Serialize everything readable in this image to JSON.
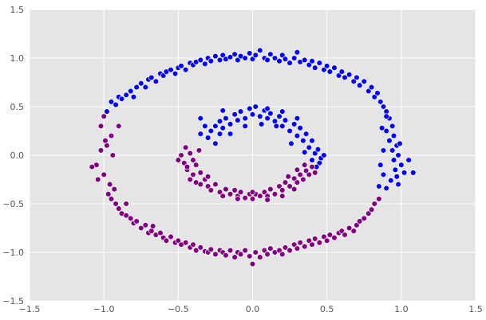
{
  "chart_data": {
    "type": "scatter",
    "title": "",
    "xlabel": "",
    "ylabel": "",
    "xlim": [
      -1.5,
      1.5
    ],
    "ylim": [
      -1.5,
      1.5
    ],
    "grid": true,
    "legend": "none",
    "x_ticks": [
      "−1.5",
      "−1.0",
      "−0.5",
      "0.0",
      "0.5",
      "1.0",
      "1.5"
    ],
    "y_ticks": [
      "1.5",
      "1.0",
      "0.5",
      "0.0",
      "−0.5",
      "−1.0",
      "−1.5"
    ],
    "x_tick_values": [
      -1.5,
      -1.0,
      -0.5,
      0.0,
      0.5,
      1.0,
      1.5
    ],
    "y_tick_values": [
      1.5,
      1.0,
      0.5,
      0.0,
      -0.5,
      -1.0,
      -1.5
    ],
    "colors": {
      "background": "#e5e5e5",
      "grid": "#ffffff",
      "blue": "#0000ff",
      "purple": "#800080"
    },
    "series": [
      {
        "color": "#0000ff",
        "points": [
          [
            -0.98,
            0.45
          ],
          [
            -0.95,
            0.55
          ],
          [
            -0.92,
            0.52
          ],
          [
            -0.9,
            0.6
          ],
          [
            -0.88,
            0.58
          ],
          [
            -0.85,
            0.62
          ],
          [
            -0.82,
            0.66
          ],
          [
            -0.8,
            0.6
          ],
          [
            -0.78,
            0.7
          ],
          [
            -0.75,
            0.74
          ],
          [
            -0.72,
            0.7
          ],
          [
            -0.7,
            0.78
          ],
          [
            -0.68,
            0.8
          ],
          [
            -0.65,
            0.76
          ],
          [
            -0.62,
            0.84
          ],
          [
            -0.6,
            0.82
          ],
          [
            -0.58,
            0.86
          ],
          [
            -0.55,
            0.88
          ],
          [
            -0.52,
            0.84
          ],
          [
            -0.5,
            0.9
          ],
          [
            -0.48,
            0.92
          ],
          [
            -0.45,
            0.88
          ],
          [
            -0.42,
            0.95
          ],
          [
            -0.4,
            0.93
          ],
          [
            -0.38,
            0.96
          ],
          [
            -0.35,
            0.98
          ],
          [
            -0.32,
            0.94
          ],
          [
            -0.3,
            1.0
          ],
          [
            -0.28,
            0.97
          ],
          [
            -0.25,
            1.02
          ],
          [
            -0.22,
            0.98
          ],
          [
            -0.2,
            1.03
          ],
          [
            -0.18,
            0.99
          ],
          [
            -0.15,
            1.01
          ],
          [
            -0.12,
            1.04
          ],
          [
            -0.1,
            0.98
          ],
          [
            -0.08,
            1.02
          ],
          [
            -0.05,
            1.0
          ],
          [
            -0.02,
            1.05
          ],
          [
            0.0,
            0.99
          ],
          [
            0.02,
            1.03
          ],
          [
            0.05,
            1.08
          ],
          [
            0.08,
            1.0
          ],
          [
            0.1,
            0.98
          ],
          [
            0.12,
            1.04
          ],
          [
            0.15,
            1.0
          ],
          [
            0.18,
            0.97
          ],
          [
            0.2,
            1.03
          ],
          [
            0.22,
            0.99
          ],
          [
            0.25,
            0.95
          ],
          [
            0.28,
            1.0
          ],
          [
            0.3,
            1.06
          ],
          [
            0.32,
            0.96
          ],
          [
            0.35,
            0.98
          ],
          [
            0.38,
            0.93
          ],
          [
            0.4,
            0.97
          ],
          [
            0.42,
            0.9
          ],
          [
            0.45,
            0.95
          ],
          [
            0.48,
            0.88
          ],
          [
            0.5,
            0.92
          ],
          [
            0.52,
            0.86
          ],
          [
            0.55,
            0.9
          ],
          [
            0.58,
            0.82
          ],
          [
            0.6,
            0.86
          ],
          [
            0.62,
            0.8
          ],
          [
            0.65,
            0.83
          ],
          [
            0.68,
            0.76
          ],
          [
            0.7,
            0.8
          ],
          [
            0.72,
            0.72
          ],
          [
            0.75,
            0.76
          ],
          [
            0.78,
            0.66
          ],
          [
            0.8,
            0.7
          ],
          [
            0.82,
            0.6
          ],
          [
            0.84,
            0.64
          ],
          [
            0.86,
            0.55
          ],
          [
            0.88,
            0.5
          ],
          [
            0.9,
            0.45
          ],
          [
            0.92,
            0.38
          ],
          [
            0.94,
            0.3
          ],
          [
            0.9,
            0.25
          ],
          [
            0.95,
            0.2
          ],
          [
            0.92,
            0.15
          ],
          [
            0.97,
            0.1
          ],
          [
            0.94,
            0.05
          ],
          [
            0.98,
            0.0
          ],
          [
            0.95,
            -0.05
          ],
          [
            1.0,
            -0.1
          ],
          [
            0.96,
            -0.15
          ],
          [
            1.02,
            -0.18
          ],
          [
            0.97,
            -0.22
          ],
          [
            0.93,
            -0.26
          ],
          [
            0.98,
            -0.3
          ],
          [
            0.9,
            -0.34
          ],
          [
            0.85,
            -0.32
          ],
          [
            0.88,
            -0.2
          ],
          [
            0.86,
            -0.1
          ],
          [
            0.88,
            0.05
          ],
          [
            0.87,
            0.28
          ],
          [
            1.05,
            -0.05
          ],
          [
            1.08,
            -0.18
          ],
          [
            0.99,
            0.12
          ],
          [
            0.9,
            0.4
          ],
          [
            -0.28,
            0.25
          ],
          [
            -0.25,
            0.3
          ],
          [
            -0.22,
            0.35
          ],
          [
            -0.2,
            0.28
          ],
          [
            -0.18,
            0.38
          ],
          [
            -0.15,
            0.32
          ],
          [
            -0.12,
            0.42
          ],
          [
            -0.1,
            0.36
          ],
          [
            -0.08,
            0.45
          ],
          [
            -0.05,
            0.38
          ],
          [
            -0.02,
            0.48
          ],
          [
            0.0,
            0.42
          ],
          [
            0.02,
            0.5
          ],
          [
            0.05,
            0.4
          ],
          [
            0.08,
            0.46
          ],
          [
            0.1,
            0.38
          ],
          [
            0.12,
            0.43
          ],
          [
            0.15,
            0.35
          ],
          [
            0.18,
            0.4
          ],
          [
            0.2,
            0.3
          ],
          [
            0.22,
            0.36
          ],
          [
            0.25,
            0.25
          ],
          [
            0.28,
            0.32
          ],
          [
            0.3,
            0.2
          ],
          [
            0.32,
            0.28
          ],
          [
            0.34,
            0.15
          ],
          [
            0.36,
            0.22
          ],
          [
            0.38,
            0.08
          ],
          [
            0.4,
            0.15
          ],
          [
            0.42,
            0.02
          ],
          [
            0.44,
            0.06
          ],
          [
            0.46,
            -0.03
          ],
          [
            0.48,
            0.0
          ],
          [
            0.45,
            -0.08
          ],
          [
            0.4,
            -0.05
          ],
          [
            0.43,
            -0.12
          ],
          [
            -0.3,
            0.18
          ],
          [
            -0.25,
            0.12
          ],
          [
            -0.22,
            0.22
          ],
          [
            -0.15,
            0.22
          ],
          [
            -0.05,
            0.3
          ],
          [
            0.06,
            0.32
          ],
          [
            0.16,
            0.3
          ],
          [
            0.26,
            0.12
          ],
          [
            0.35,
            0.03
          ],
          [
            -0.32,
            0.3
          ],
          [
            -0.35,
            0.22
          ],
          [
            0.2,
            0.45
          ],
          [
            -0.2,
            0.46
          ],
          [
            -0.35,
            0.38
          ],
          [
            0.1,
            0.48
          ],
          [
            0.3,
            0.38
          ]
        ]
      },
      {
        "color": "#800080",
        "points": [
          [
            -1.05,
            -0.1
          ],
          [
            -1.02,
            0.05
          ],
          [
            -1.0,
            -0.2
          ],
          [
            -0.98,
            0.1
          ],
          [
            -0.96,
            -0.3
          ],
          [
            -0.95,
            0.2
          ],
          [
            -1.02,
            0.3
          ],
          [
            -1.0,
            0.4
          ],
          [
            -0.97,
            -0.4
          ],
          [
            -0.95,
            -0.45
          ],
          [
            -0.92,
            -0.5
          ],
          [
            -0.9,
            -0.55
          ],
          [
            -0.88,
            -0.6
          ],
          [
            -0.85,
            -0.62
          ],
          [
            -0.82,
            -0.65
          ],
          [
            -0.8,
            -0.7
          ],
          [
            -0.78,
            -0.68
          ],
          [
            -0.75,
            -0.75
          ],
          [
            -0.72,
            -0.72
          ],
          [
            -0.7,
            -0.8
          ],
          [
            -0.68,
            -0.78
          ],
          [
            -0.65,
            -0.82
          ],
          [
            -0.62,
            -0.8
          ],
          [
            -0.6,
            -0.85
          ],
          [
            -0.58,
            -0.88
          ],
          [
            -0.55,
            -0.84
          ],
          [
            -0.52,
            -0.9
          ],
          [
            -0.5,
            -0.88
          ],
          [
            -0.48,
            -0.92
          ],
          [
            -0.45,
            -0.9
          ],
          [
            -0.42,
            -0.95
          ],
          [
            -0.4,
            -0.92
          ],
          [
            -0.38,
            -0.98
          ],
          [
            -0.35,
            -0.95
          ],
          [
            -0.32,
            -0.99
          ],
          [
            -0.3,
            -1.0
          ],
          [
            -0.28,
            -0.97
          ],
          [
            -0.25,
            -1.02
          ],
          [
            -0.22,
            -0.98
          ],
          [
            -0.2,
            -1.0
          ],
          [
            -0.18,
            -1.03
          ],
          [
            -0.15,
            -0.98
          ],
          [
            -0.12,
            -1.05
          ],
          [
            -0.1,
            -1.0
          ],
          [
            -0.08,
            -1.02
          ],
          [
            -0.05,
            -0.98
          ],
          [
            -0.02,
            -1.04
          ],
          [
            0.0,
            -1.12
          ],
          [
            0.02,
            -1.0
          ],
          [
            0.05,
            -1.05
          ],
          [
            0.08,
            -0.98
          ],
          [
            0.1,
            -1.02
          ],
          [
            0.12,
            -0.96
          ],
          [
            0.15,
            -1.0
          ],
          [
            0.18,
            -0.98
          ],
          [
            0.2,
            -1.02
          ],
          [
            0.22,
            -0.95
          ],
          [
            0.25,
            -0.98
          ],
          [
            0.28,
            -0.92
          ],
          [
            0.3,
            -0.96
          ],
          [
            0.32,
            -0.9
          ],
          [
            0.35,
            -0.94
          ],
          [
            0.38,
            -0.88
          ],
          [
            0.4,
            -0.92
          ],
          [
            0.42,
            -0.86
          ],
          [
            0.45,
            -0.9
          ],
          [
            0.48,
            -0.84
          ],
          [
            0.5,
            -0.88
          ],
          [
            0.52,
            -0.82
          ],
          [
            0.55,
            -0.85
          ],
          [
            0.58,
            -0.8
          ],
          [
            0.6,
            -0.78
          ],
          [
            0.62,
            -0.82
          ],
          [
            0.65,
            -0.75
          ],
          [
            0.68,
            -0.78
          ],
          [
            0.7,
            -0.72
          ],
          [
            0.72,
            -0.68
          ],
          [
            0.75,
            -0.65
          ],
          [
            0.78,
            -0.6
          ],
          [
            0.8,
            -0.56
          ],
          [
            0.82,
            -0.5
          ],
          [
            0.85,
            -0.45
          ],
          [
            -1.08,
            -0.12
          ],
          [
            -0.99,
            0.15
          ],
          [
            -1.04,
            -0.25
          ],
          [
            -0.93,
            -0.35
          ],
          [
            -0.9,
            0.3
          ],
          [
            -0.94,
            0.0
          ],
          [
            -0.85,
            -0.5
          ],
          [
            -0.67,
            -0.73
          ],
          [
            -0.32,
            -0.25
          ],
          [
            -0.35,
            -0.18
          ],
          [
            -0.38,
            -0.1
          ],
          [
            -0.4,
            -0.05
          ],
          [
            -0.42,
            0.02
          ],
          [
            -0.45,
            0.08
          ],
          [
            -0.48,
            0.0
          ],
          [
            -0.46,
            -0.08
          ],
          [
            -0.44,
            -0.15
          ],
          [
            -0.4,
            -0.2
          ],
          [
            -0.38,
            -0.28
          ],
          [
            -0.3,
            -0.32
          ],
          [
            -0.25,
            -0.3
          ],
          [
            -0.22,
            -0.38
          ],
          [
            -0.18,
            -0.35
          ],
          [
            -0.15,
            -0.4
          ],
          [
            -0.12,
            -0.36
          ],
          [
            -0.1,
            -0.42
          ],
          [
            -0.08,
            -0.38
          ],
          [
            -0.05,
            -0.44
          ],
          [
            -0.02,
            -0.4
          ],
          [
            0.0,
            -0.45
          ],
          [
            0.02,
            -0.4
          ],
          [
            0.05,
            -0.42
          ],
          [
            0.08,
            -0.38
          ],
          [
            0.1,
            -0.42
          ],
          [
            0.12,
            -0.35
          ],
          [
            0.15,
            -0.4
          ],
          [
            0.18,
            -0.32
          ],
          [
            0.2,
            -0.36
          ],
          [
            0.22,
            -0.28
          ],
          [
            0.25,
            -0.32
          ],
          [
            0.28,
            -0.24
          ],
          [
            0.3,
            -0.28
          ],
          [
            0.32,
            -0.2
          ],
          [
            0.34,
            -0.25
          ],
          [
            0.36,
            -0.16
          ],
          [
            0.38,
            -0.2
          ],
          [
            0.4,
            -0.12
          ],
          [
            0.42,
            -0.18
          ],
          [
            -0.5,
            -0.05
          ],
          [
            -0.44,
            -0.12
          ],
          [
            -0.35,
            -0.3
          ],
          [
            -0.28,
            -0.36
          ],
          [
            -0.2,
            -0.42
          ],
          [
            -0.1,
            -0.45
          ],
          [
            0.0,
            -0.38
          ],
          [
            0.1,
            -0.46
          ],
          [
            0.2,
            -0.42
          ],
          [
            0.28,
            -0.35
          ],
          [
            0.35,
            -0.1
          ],
          [
            0.3,
            -0.15
          ],
          [
            0.24,
            -0.22
          ],
          [
            -0.36,
            0.05
          ],
          [
            -0.42,
            -0.25
          ],
          [
            -0.3,
            -0.22
          ]
        ]
      }
    ]
  }
}
